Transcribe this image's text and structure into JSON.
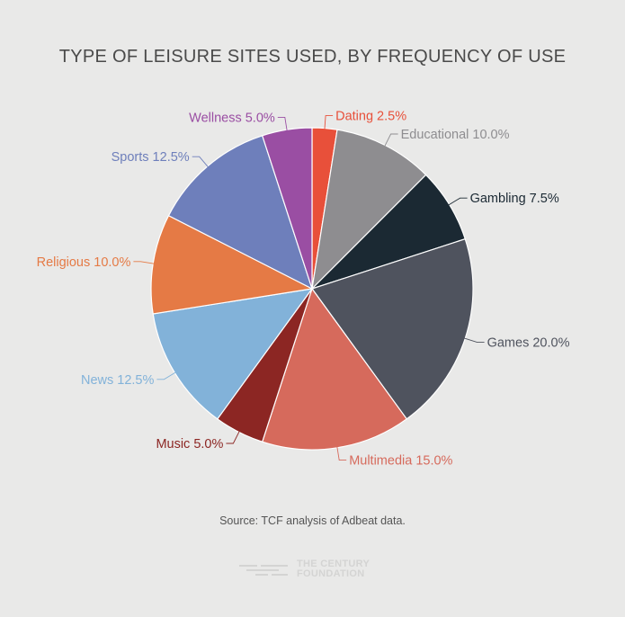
{
  "chart_data": {
    "type": "pie",
    "title": "TYPE OF LEISURE SITES USED, BY FREQUENCY OF USE",
    "slices": [
      {
        "label": "Dating",
        "value": 2.5,
        "display": "2.5%",
        "color": "#e8503a"
      },
      {
        "label": "Educational",
        "value": 10.0,
        "display": "10.0%",
        "color": "#8e8d90"
      },
      {
        "label": "Gambling",
        "value": 7.5,
        "display": "7.5%",
        "color": "#1b2933"
      },
      {
        "label": "Games",
        "value": 20.0,
        "display": "20.0%",
        "color": "#4f535e"
      },
      {
        "label": "Multimedia",
        "value": 15.0,
        "display": "15.0%",
        "color": "#d66a5c"
      },
      {
        "label": "Music",
        "value": 5.0,
        "display": "5.0%",
        "color": "#8c2623"
      },
      {
        "label": "News",
        "value": 12.5,
        "display": "12.5%",
        "color": "#82b2d9"
      },
      {
        "label": "Religious",
        "value": 10.0,
        "display": "10.0%",
        "color": "#e57a45"
      },
      {
        "label": "Sports",
        "value": 12.5,
        "display": "12.5%",
        "color": "#6e7fbb"
      },
      {
        "label": "Wellness",
        "value": 5.0,
        "display": "5.0%",
        "color": "#9a4ea3"
      }
    ],
    "label_colors": {
      "Dating": "#e8503a",
      "Educational": "#8e8d90",
      "Gambling": "#1b2933",
      "Games": "#4f535e",
      "Multimedia": "#d66a5c",
      "Music": "#8c2623",
      "News": "#82b2d9",
      "Religious": "#e57a45",
      "Sports": "#6e7fbb",
      "Wellness": "#9a4ea3"
    },
    "source": "Source: TCF analysis of Adbeat data."
  },
  "branding": {
    "line1": "THE CENTURY",
    "line2": "FOUNDATION"
  }
}
